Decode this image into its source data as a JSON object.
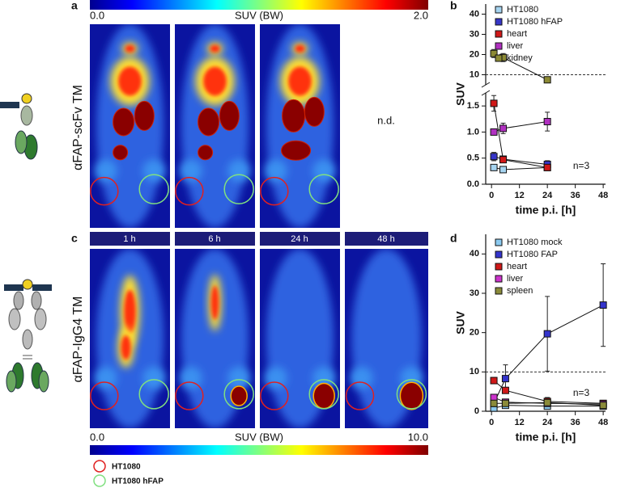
{
  "figure": {
    "panel_labels": [
      "a",
      "b",
      "c",
      "d"
    ],
    "scale_top": {
      "min_label": "0.0",
      "title": "SUV (BW)",
      "max_label": "2.0"
    },
    "scale_bottom": {
      "min_label": "0.0",
      "title": "SUV (BW)",
      "max_label": "10.0"
    },
    "row_labels": [
      "αFAP-scFv TM",
      "αFAP-IgG4 TM"
    ],
    "time_labels": [
      "1 h",
      "6 h",
      "24 h",
      "48 h"
    ],
    "not_detected": "n.d.",
    "roi_legend": [
      "HT1080",
      "HT1080 hFAP"
    ]
  },
  "chart_data": [
    {
      "type": "line",
      "xlabel": "time p.i. [h]",
      "ylabel": "SUV",
      "annotation": "n=3",
      "legend": "upper left",
      "x": [
        1,
        5,
        24
      ],
      "xlim": [
        -2.5,
        49
      ],
      "xticks": [
        0,
        12,
        24,
        36,
        48
      ],
      "hline": 10,
      "segments": [
        {
          "ylim": [
            0,
            1.75
          ],
          "yticks": [
            {
              "value": 0,
              "label": "0.0"
            },
            0.5,
            {
              "value": 1,
              "label": "1.0"
            },
            1.5
          ]
        },
        {
          "ylim": [
            5,
            45
          ],
          "yticks": [
            10,
            20,
            30,
            40
          ]
        }
      ],
      "series": [
        {
          "name": "HT1080",
          "color": "#a6d4f0",
          "segment": 0,
          "values": [
            0.32,
            0.28,
            0.32
          ],
          "errors": [
            0.05,
            0.03,
            0.03
          ]
        },
        {
          "name": "HT1080 hFAP",
          "color": "#3636c8",
          "segment": 0,
          "values": [
            0.53,
            0.48,
            0.38
          ],
          "errors": [
            0.08,
            0.05,
            0.07
          ]
        },
        {
          "name": "heart",
          "color": "#d01818",
          "segment": 0,
          "values": [
            1.55,
            0.47,
            0.32
          ],
          "errors": [
            0.15,
            0.05,
            0.03
          ]
        },
        {
          "name": "liver",
          "color": "#b030c0",
          "segment": 0,
          "values": [
            1.0,
            1.07,
            1.2
          ],
          "errors": [
            0.05,
            0.1,
            0.18
          ]
        },
        {
          "name": "kidney",
          "color": "#8c8a34",
          "segment": 1,
          "values": [
            20.5,
            18.5,
            7.5
          ],
          "errors": [
            2,
            2,
            0.5
          ]
        }
      ]
    },
    {
      "type": "line",
      "xlabel": "time p.i. [h]",
      "ylabel": "SUV",
      "annotation": "n=3",
      "legend": "upper left",
      "x": [
        1,
        6,
        24,
        48
      ],
      "xlim": [
        -2.5,
        49
      ],
      "xticks": [
        0,
        12,
        24,
        36,
        48
      ],
      "hline": 10,
      "ylim": [
        0,
        45
      ],
      "yticks": [
        0,
        10,
        20,
        30,
        40
      ],
      "series": [
        {
          "name": "HT1080 mock",
          "color": "#8ccaf0",
          "values": [
            0.8,
            1.5,
            1.3,
            1.3
          ],
          "errors": [
            0.3,
            0.4,
            0.3,
            0.3
          ]
        },
        {
          "name": "HT1080 FAP",
          "color": "#3434cc",
          "values": [
            2,
            8.3,
            19.7,
            27
          ],
          "errors": [
            0.5,
            3.5,
            9.5,
            10.5
          ]
        },
        {
          "name": "heart",
          "color": "#d01818",
          "values": [
            7.8,
            5.3,
            2.5,
            2
          ],
          "errors": [
            0.8,
            0.5,
            1,
            0.5
          ]
        },
        {
          "name": "liver",
          "color": "#cc33cc",
          "values": [
            3.5,
            2.3,
            2,
            1.8
          ],
          "errors": [
            0.5,
            0.4,
            0.4,
            0.3
          ]
        },
        {
          "name": "spleen",
          "color": "#8b8b3a",
          "values": [
            2,
            2,
            2.2,
            1.5
          ],
          "errors": [
            0.4,
            0.4,
            0.4,
            0.3
          ]
        }
      ]
    }
  ]
}
